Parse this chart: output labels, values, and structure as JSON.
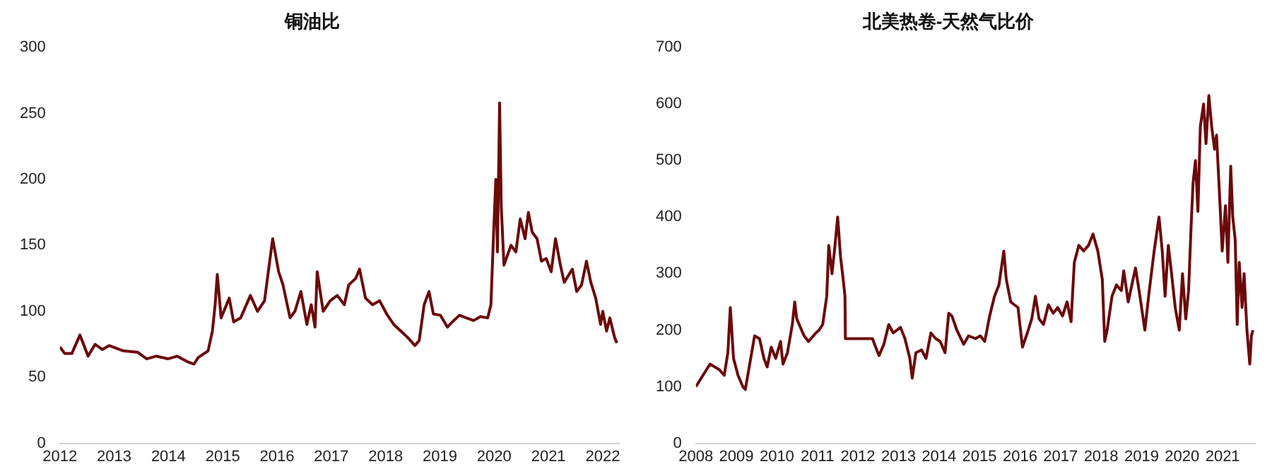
{
  "chart_data": [
    {
      "type": "line",
      "title": "铜油比",
      "xlim": [
        2012,
        2022.3
      ],
      "xticks": [
        2012,
        2013,
        2014,
        2015,
        2016,
        2017,
        2018,
        2019,
        2020,
        2021,
        2022
      ],
      "ylim": [
        0,
        300
      ],
      "yticks": [
        0,
        50,
        100,
        150,
        200,
        250,
        300
      ],
      "grid": false,
      "legend": false,
      "marker": "none",
      "line_style": "solid",
      "series": [
        {
          "color": "#6b0a0a",
          "x": [
            2012.0,
            2012.09,
            2012.22,
            2012.37,
            2012.52,
            2012.65,
            2012.78,
            2012.91,
            2013.17,
            2013.43,
            2013.6,
            2013.77,
            2013.99,
            2014.16,
            2014.34,
            2014.47,
            2014.55,
            2014.73,
            2014.81,
            2014.86,
            2014.9,
            2014.97,
            2015.12,
            2015.2,
            2015.33,
            2015.51,
            2015.64,
            2015.77,
            2015.84,
            2015.92,
            2016.03,
            2016.11,
            2016.24,
            2016.33,
            2016.44,
            2016.55,
            2016.63,
            2016.7,
            2016.74,
            2016.85,
            2016.98,
            2017.11,
            2017.24,
            2017.32,
            2017.45,
            2017.52,
            2017.63,
            2017.76,
            2017.89,
            2018.02,
            2018.15,
            2018.28,
            2018.41,
            2018.54,
            2018.62,
            2018.71,
            2018.8,
            2018.88,
            2019.01,
            2019.14,
            2019.23,
            2019.36,
            2019.49,
            2019.62,
            2019.75,
            2019.88,
            2019.94,
            2019.99,
            2020.03,
            2020.06,
            2020.1,
            2020.13,
            2020.18,
            2020.31,
            2020.4,
            2020.48,
            2020.57,
            2020.63,
            2020.7,
            2020.79,
            2020.87,
            2020.96,
            2021.05,
            2021.13,
            2021.22,
            2021.29,
            2021.44,
            2021.52,
            2021.61,
            2021.7,
            2021.78,
            2021.87,
            2021.96,
            2022.0,
            2022.07,
            2022.13,
            2022.22,
            2022.26
          ],
          "values": [
            73,
            68,
            68,
            82,
            66,
            75,
            71,
            74,
            70,
            69,
            64,
            66,
            64,
            66,
            62,
            60,
            65,
            70,
            85,
            105,
            128,
            95,
            110,
            92,
            95,
            112,
            100,
            108,
            130,
            155,
            130,
            120,
            95,
            100,
            115,
            90,
            105,
            88,
            130,
            100,
            108,
            112,
            105,
            120,
            125,
            132,
            110,
            105,
            108,
            98,
            90,
            85,
            80,
            74,
            78,
            105,
            115,
            98,
            97,
            88,
            92,
            97,
            95,
            93,
            96,
            95,
            105,
            160,
            200,
            145,
            258,
            180,
            135,
            150,
            145,
            170,
            155,
            175,
            160,
            155,
            138,
            140,
            130,
            155,
            135,
            122,
            132,
            115,
            120,
            138,
            122,
            110,
            90,
            100,
            85,
            95,
            80,
            76
          ]
        }
      ]
    },
    {
      "type": "line",
      "title": "北美热卷-天然气比价",
      "xlim": [
        2008,
        2021.8
      ],
      "xticks": [
        2008,
        2009,
        2010,
        2011,
        2012,
        2013,
        2014,
        2015,
        2016,
        2017,
        2018,
        2019,
        2020,
        2021
      ],
      "ylim": [
        0,
        700
      ],
      "yticks": [
        0,
        100,
        200,
        300,
        400,
        500,
        600,
        700
      ],
      "grid": false,
      "legend": false,
      "marker": "none",
      "line_style": "solid",
      "series": [
        {
          "color": "#6b0a0a",
          "x": [
            2008.0,
            2008.35,
            2008.58,
            2008.7,
            2008.79,
            2008.85,
            2008.93,
            2009.04,
            2009.16,
            2009.22,
            2009.45,
            2009.57,
            2009.68,
            2009.76,
            2009.86,
            2009.97,
            2010.09,
            2010.15,
            2010.26,
            2010.38,
            2010.44,
            2010.49,
            2010.67,
            2010.78,
            2010.96,
            2011.04,
            2011.13,
            2011.23,
            2011.28,
            2011.36,
            2011.42,
            2011.5,
            2011.57,
            2011.62,
            2011.68,
            2011.69,
            2012.36,
            2012.41,
            2012.52,
            2012.64,
            2012.76,
            2012.87,
            2013.05,
            2013.16,
            2013.28,
            2013.34,
            2013.43,
            2013.57,
            2013.68,
            2013.8,
            2013.92,
            2014.03,
            2014.15,
            2014.24,
            2014.32,
            2014.44,
            2014.61,
            2014.73,
            2014.9,
            2015.02,
            2015.13,
            2015.25,
            2015.37,
            2015.48,
            2015.6,
            2015.66,
            2015.77,
            2015.95,
            2016.06,
            2016.18,
            2016.29,
            2016.38,
            2016.47,
            2016.58,
            2016.7,
            2016.82,
            2016.93,
            2017.05,
            2017.16,
            2017.26,
            2017.34,
            2017.45,
            2017.57,
            2017.69,
            2017.8,
            2017.92,
            2018.03,
            2018.09,
            2018.15,
            2018.27,
            2018.38,
            2018.5,
            2018.56,
            2018.67,
            2018.79,
            2018.85,
            2018.96,
            2019.08,
            2019.19,
            2019.31,
            2019.43,
            2019.51,
            2019.58,
            2019.66,
            2019.74,
            2019.83,
            2019.93,
            2020.01,
            2020.09,
            2020.16,
            2020.22,
            2020.27,
            2020.33,
            2020.39,
            2020.45,
            2020.53,
            2020.59,
            2020.66,
            2020.73,
            2020.8,
            2020.85,
            2020.93,
            2020.99,
            2021.07,
            2021.13,
            2021.2,
            2021.25,
            2021.31,
            2021.36,
            2021.41,
            2021.48,
            2021.53,
            2021.6,
            2021.67,
            2021.71,
            2021.75
          ],
          "values": [
            100,
            140,
            130,
            120,
            160,
            240,
            150,
            120,
            100,
            95,
            190,
            185,
            150,
            135,
            170,
            150,
            180,
            140,
            160,
            210,
            250,
            220,
            190,
            180,
            195,
            200,
            210,
            260,
            350,
            300,
            340,
            400,
            330,
            300,
            260,
            185,
            185,
            175,
            155,
            175,
            210,
            195,
            205,
            185,
            150,
            115,
            160,
            165,
            150,
            195,
            185,
            180,
            160,
            230,
            225,
            200,
            175,
            190,
            185,
            190,
            180,
            225,
            260,
            280,
            340,
            290,
            250,
            240,
            170,
            195,
            220,
            260,
            220,
            210,
            245,
            230,
            240,
            225,
            250,
            215,
            320,
            350,
            340,
            350,
            370,
            340,
            290,
            180,
            200,
            260,
            280,
            270,
            305,
            250,
            290,
            310,
            260,
            200,
            270,
            340,
            400,
            340,
            260,
            350,
            300,
            240,
            200,
            300,
            220,
            270,
            380,
            460,
            500,
            410,
            560,
            600,
            530,
            615,
            560,
            520,
            545,
            430,
            340,
            420,
            320,
            490,
            400,
            360,
            210,
            320,
            240,
            300,
            200,
            140,
            190,
            200
          ]
        }
      ]
    }
  ]
}
